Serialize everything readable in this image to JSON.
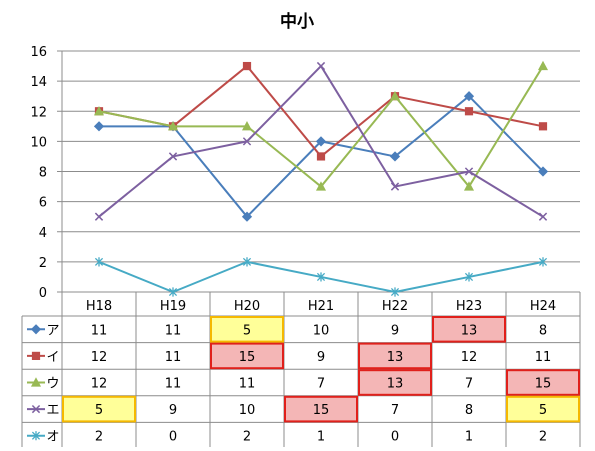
{
  "chart_data": {
    "type": "line",
    "title": "中小",
    "categories": [
      "H18",
      "H19",
      "H20",
      "H21",
      "H22",
      "H23",
      "H24"
    ],
    "ylim": [
      0,
      16
    ],
    "yticks": [
      0,
      2,
      4,
      6,
      8,
      10,
      12,
      14,
      16
    ],
    "grid": true,
    "legend": "data-table",
    "series": [
      {
        "name": "ア",
        "color": "#4A7EBB",
        "marker": "diamond",
        "values": [
          11,
          11,
          5,
          10,
          9,
          13,
          8
        ]
      },
      {
        "name": "イ",
        "color": "#BE4B48",
        "marker": "square",
        "values": [
          12,
          11,
          15,
          9,
          13,
          12,
          11
        ]
      },
      {
        "name": "ウ",
        "color": "#98B954",
        "marker": "triangle",
        "values": [
          12,
          11,
          11,
          7,
          13,
          7,
          15
        ]
      },
      {
        "name": "エ",
        "color": "#7D60A0",
        "marker": "x",
        "values": [
          5,
          9,
          10,
          15,
          7,
          8,
          5
        ]
      },
      {
        "name": "オ",
        "color": "#46AAC5",
        "marker": "star",
        "values": [
          2,
          0,
          2,
          1,
          0,
          1,
          2
        ]
      }
    ],
    "highlights": {
      "max": {
        "fill": "#F4B6B6",
        "border": "#E0201B",
        "cells": [
          [
            0,
            5
          ],
          [
            1,
            2
          ],
          [
            1,
            4
          ],
          [
            2,
            4
          ],
          [
            2,
            6
          ],
          [
            3,
            3
          ]
        ]
      },
      "min": {
        "fill": "#FFFF99",
        "border": "#F5B800",
        "cells": [
          [
            0,
            2
          ],
          [
            3,
            0
          ],
          [
            3,
            6
          ]
        ]
      }
    }
  }
}
